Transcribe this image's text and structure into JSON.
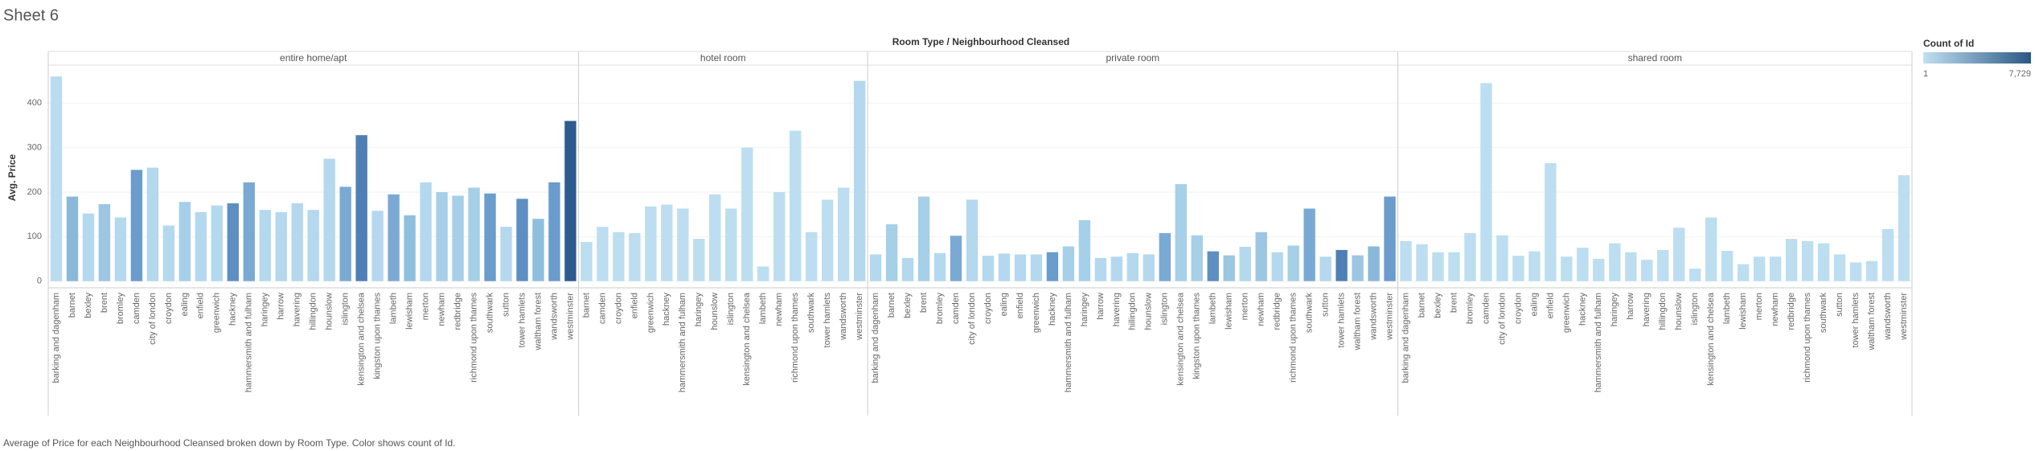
{
  "page_title": "Sheet 6",
  "caption": "Average of Price for each Neighbourhood Cleansed broken down by Room Type.  Color shows count of Id.",
  "chart_data": {
    "type": "bar",
    "title": "Room Type / Neighbourhood Cleansed",
    "y_label": "Avg. Price",
    "ylim": [
      -15,
      480
    ],
    "yticks": [
      0,
      100,
      200,
      300,
      400
    ],
    "grid": true,
    "legend": {
      "title": "Count of Id",
      "range": [
        1,
        {
          "value": 7729,
          "label": "7,729"
        }
      ],
      "colors": [
        "#c0e0f2",
        "#2a5783"
      ],
      "position": "top-right"
    },
    "panels": [
      {
        "name": "entire home/apt",
        "categories": [
          "barking and dagenham",
          "barnet",
          "bexley",
          "brent",
          "bromley",
          "camden",
          "city of london",
          "croydon",
          "ealing",
          "enfield",
          "greenwich",
          "hackney",
          "hammersmith and fulham",
          "haringey",
          "harrow",
          "havering",
          "hillingdon",
          "hounslow",
          "islington",
          "kensington and chelsea",
          "kingston upon thames",
          "lambeth",
          "lewisham",
          "merton",
          "newham",
          "redbridge",
          "richmond upon thames",
          "southwark",
          "sutton",
          "tower hamlets",
          "waltham forest",
          "wandsworth",
          "westminster"
        ],
        "values": [
          460,
          190,
          152,
          173,
          143,
          250,
          255,
          125,
          178,
          155,
          170,
          175,
          222,
          160,
          155,
          175,
          160,
          275,
          212,
          328,
          158,
          195,
          148,
          222,
          200,
          192,
          210,
          197,
          122,
          185,
          140,
          222,
          360
        ],
        "colors": [
          "#b9dcef",
          "#8ab8d8",
          "#b4d8ee",
          "#9cc6e2",
          "#b4d8ee",
          "#6a9ccc",
          "#b4d8ee",
          "#b4d8ee",
          "#a6cfe8",
          "#b4d8ee",
          "#b4d8ee",
          "#5e8fc2",
          "#7aaad4",
          "#b4d8ee",
          "#b4d8ee",
          "#b4d8ee",
          "#b4d8ee",
          "#b4d8ee",
          "#7aaad4",
          "#4f7fb5",
          "#b4d8ee",
          "#7aaad4",
          "#8fbfdf",
          "#b4d8ee",
          "#a6cfe8",
          "#a6cfe8",
          "#a6cfe8",
          "#6a9ccc",
          "#b4d8ee",
          "#5e8fc2",
          "#8fbfdf",
          "#6a9ccc",
          "#2e5b8f"
        ]
      },
      {
        "name": "hotel room",
        "categories": [
          "barnet",
          "camden",
          "croydon",
          "enfield",
          "greenwich",
          "hackney",
          "hammersmith and fulham",
          "haringey",
          "hounslow",
          "islington",
          "kensington and chelsea",
          "lambeth",
          "newham",
          "richmond upon thames",
          "southwark",
          "tower hamlets",
          "wandsworth",
          "westminster"
        ],
        "values": [
          88,
          122,
          110,
          108,
          168,
          172,
          163,
          95,
          195,
          163,
          300,
          33,
          200,
          338,
          110,
          183,
          210,
          450
        ],
        "colors": [
          "#bcdef0",
          "#bcdef0",
          "#bcdef0",
          "#bcdef0",
          "#bcdef0",
          "#bcdef0",
          "#bcdef0",
          "#bcdef0",
          "#bcdef0",
          "#bcdef0",
          "#bcdef0",
          "#bcdef0",
          "#bcdef0",
          "#bcdef0",
          "#bcdef0",
          "#bcdef0",
          "#bcdef0",
          "#b4d8ee"
        ]
      },
      {
        "name": "private room",
        "categories": [
          "barking and dagenham",
          "barnet",
          "bexley",
          "brent",
          "bromley",
          "camden",
          "city of london",
          "croydon",
          "ealing",
          "enfield",
          "greenwich",
          "hackney",
          "hammersmith and fulham",
          "haringey",
          "harrow",
          "havering",
          "hillingdon",
          "hounslow",
          "islington",
          "kensington and chelsea",
          "kingston upon thames",
          "lambeth",
          "lewisham",
          "merton",
          "newham",
          "redbridge",
          "richmond upon thames",
          "southwark",
          "sutton",
          "tower hamlets",
          "waltham forest",
          "wandsworth",
          "westminster"
        ],
        "values": [
          60,
          128,
          52,
          190,
          63,
          102,
          183,
          57,
          62,
          60,
          60,
          65,
          78,
          137,
          52,
          55,
          63,
          60,
          108,
          218,
          103,
          67,
          58,
          77,
          110,
          65,
          80,
          163,
          55,
          70,
          58,
          78,
          190
        ],
        "colors": [
          "#b4d8ee",
          "#a6cfe8",
          "#b4d8ee",
          "#a6cfe8",
          "#b4d8ee",
          "#7aaad4",
          "#b4d8ee",
          "#b4d8ee",
          "#b4d8ee",
          "#b4d8ee",
          "#b4d8ee",
          "#6a9ccc",
          "#a6cfe8",
          "#a6cfe8",
          "#b4d8ee",
          "#b4d8ee",
          "#b4d8ee",
          "#b4d8ee",
          "#7aaad4",
          "#a6cfe8",
          "#a6cfe8",
          "#5e8fc2",
          "#9cc6e2",
          "#b4d8ee",
          "#9cc6e2",
          "#b4d8ee",
          "#a6cfe8",
          "#7aaad4",
          "#b4d8ee",
          "#4f7fb5",
          "#9cc6e2",
          "#8ab8d8",
          "#6a9ccc"
        ]
      },
      {
        "name": "shared room",
        "categories": [
          "barking and dagenham",
          "barnet",
          "bexley",
          "brent",
          "bromley",
          "camden",
          "city of london",
          "croydon",
          "ealing",
          "enfield",
          "greenwich",
          "hackney",
          "hammersmith and fulham",
          "haringey",
          "harrow",
          "havering",
          "hillingdon",
          "hounslow",
          "islington",
          "kensington and chelsea",
          "lambeth",
          "lewisham",
          "merton",
          "newham",
          "redbridge",
          "richmond upon thames",
          "southwark",
          "sutton",
          "tower hamlets",
          "waltham forest",
          "wandsworth",
          "westminster"
        ],
        "values": [
          90,
          83,
          65,
          65,
          108,
          445,
          103,
          57,
          67,
          265,
          55,
          75,
          50,
          85,
          65,
          48,
          70,
          120,
          28,
          143,
          68,
          38,
          55,
          55,
          95,
          90,
          85,
          60,
          42,
          45,
          117,
          238
        ],
        "colors": [
          "#bcdef0",
          "#bcdef0",
          "#bcdef0",
          "#bcdef0",
          "#bcdef0",
          "#bcdef0",
          "#bcdef0",
          "#bcdef0",
          "#bcdef0",
          "#bcdef0",
          "#bcdef0",
          "#bcdef0",
          "#bcdef0",
          "#bcdef0",
          "#bcdef0",
          "#bcdef0",
          "#bcdef0",
          "#bcdef0",
          "#bcdef0",
          "#bcdef0",
          "#bcdef0",
          "#bcdef0",
          "#bcdef0",
          "#bcdef0",
          "#bcdef0",
          "#bcdef0",
          "#bcdef0",
          "#bcdef0",
          "#bcdef0",
          "#bcdef0",
          "#bcdef0",
          "#bcdef0"
        ]
      }
    ]
  }
}
